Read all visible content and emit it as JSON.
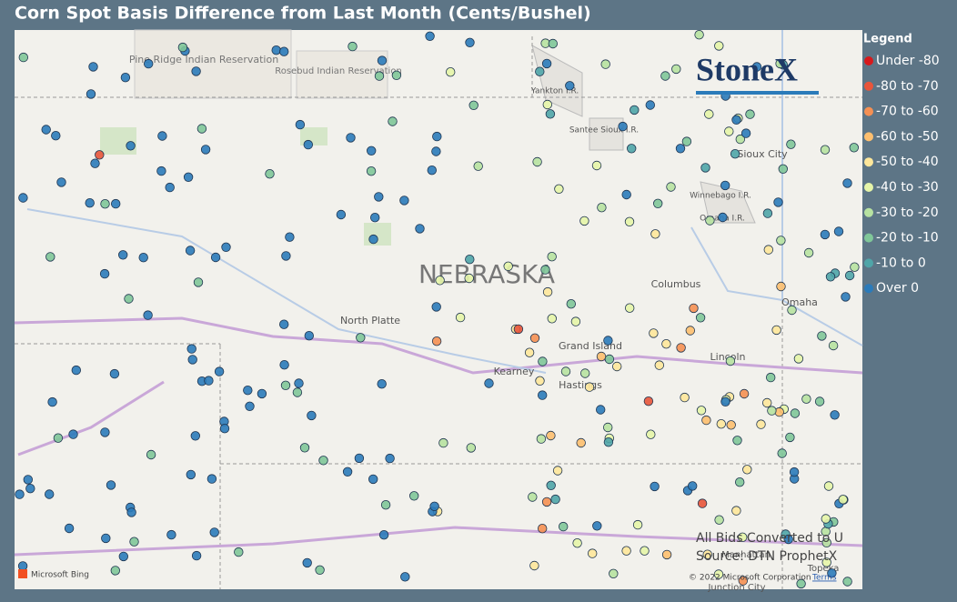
{
  "header": {
    "title": "Corn Spot Basis Difference from Last Month (Cents/Bushel)"
  },
  "legend": {
    "title": "Legend",
    "items": [
      {
        "label": "Under -80",
        "color": "#d7191c"
      },
      {
        "label": "-80 to -70",
        "color": "#e8553b"
      },
      {
        "label": "-70 to -60",
        "color": "#f59053"
      },
      {
        "label": "-60 to -50",
        "color": "#fdbf6f"
      },
      {
        "label": "-50 to -40",
        "color": "#fee79b"
      },
      {
        "label": "-40 to -30",
        "color": "#e6f5a8"
      },
      {
        "label": "-30 to -20",
        "color": "#b7e2a1"
      },
      {
        "label": "-20 to -10",
        "color": "#80c799"
      },
      {
        "label": "-10 to 0",
        "color": "#4fa5a8"
      },
      {
        "label": "Over 0",
        "color": "#2b7bba"
      }
    ]
  },
  "map": {
    "places": [
      "Pine Ridge Indian Reservation",
      "Rosebud Indian Reservation",
      "NEBRASKA",
      "North Platte",
      "Grand Island",
      "Kearney",
      "Hastings",
      "Columbus",
      "Omaha",
      "Lincoln",
      "Sioux City",
      "Yankton I.R.",
      "Santee Sioux I.R.",
      "Winnebago I.R.",
      "Omaha I.R.",
      "Manhattan",
      "Topeka",
      "Junction City"
    ],
    "logo": "StoneX",
    "notes": [
      "All Bids Converted to U",
      "Source: DTN ProphetX"
    ],
    "attribution": "Microsoft Bing",
    "copyright": "© 2022 Microsoft Corporation",
    "terms": "Terms"
  }
}
